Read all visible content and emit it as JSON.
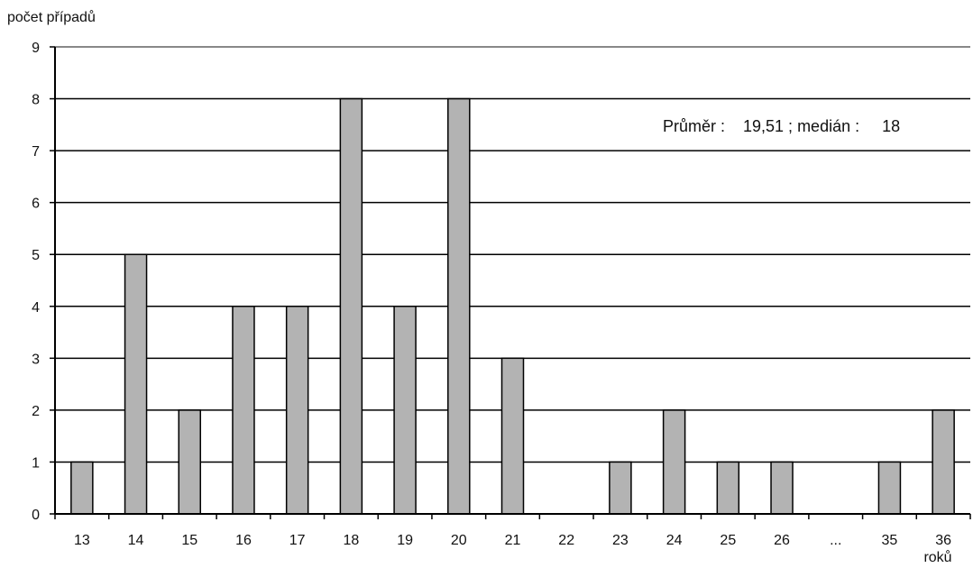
{
  "chart_data": {
    "type": "bar",
    "ylabel": "počet případů",
    "xlabel": "roků",
    "annotation": "Průměr :    19,51 ; medián :     18",
    "categories": [
      "13",
      "14",
      "15",
      "16",
      "17",
      "18",
      "19",
      "20",
      "21",
      "22",
      "23",
      "24",
      "25",
      "26",
      "...",
      "35",
      "36"
    ],
    "series": [
      {
        "values": [
          1,
          5,
          2,
          4,
          4,
          8,
          4,
          8,
          3,
          0,
          1,
          2,
          1,
          1,
          0,
          1,
          2
        ]
      }
    ],
    "ylim": [
      0,
      9
    ],
    "yticks": [
      0,
      1,
      2,
      3,
      4,
      5,
      6,
      7,
      8,
      9
    ],
    "grid": true,
    "colors": {
      "bar_fill": "#b3b3b3",
      "bar_stroke": "#000000",
      "grid": "#000000",
      "top_line": "#888888"
    }
  }
}
